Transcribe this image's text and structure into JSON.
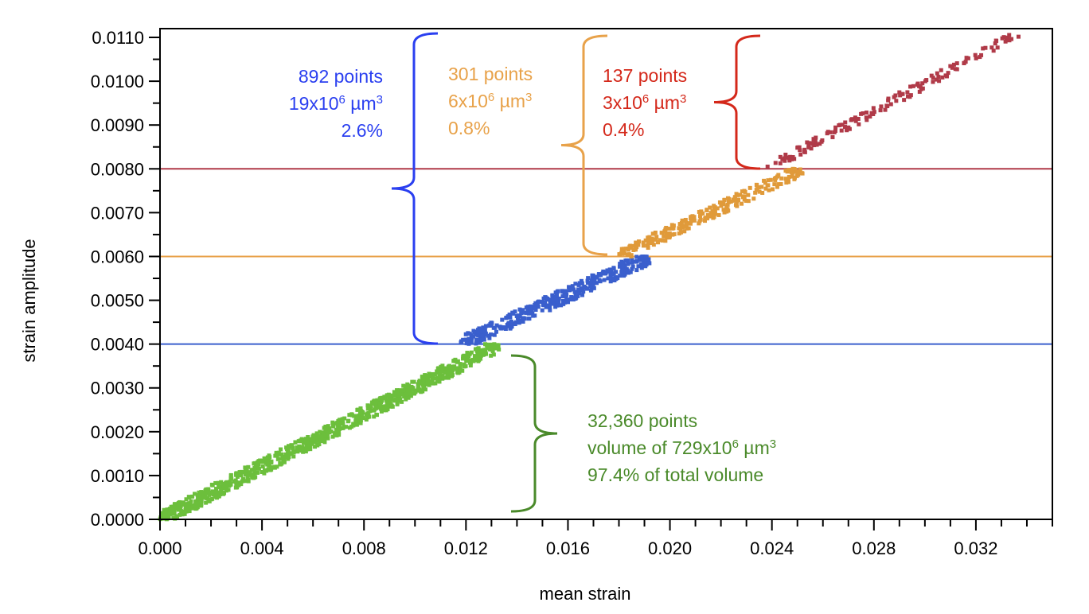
{
  "chart_data": {
    "type": "scatter",
    "title": "",
    "xlabel": "mean strain",
    "ylabel": "strain amplitude",
    "xlim": [
      0.0,
      0.035
    ],
    "ylim": [
      0.0,
      0.0112
    ],
    "x_ticks": [
      "0.000",
      "0.004",
      "0.008",
      "0.012",
      "0.016",
      "0.020",
      "0.024",
      "0.028",
      "0.032"
    ],
    "y_ticks": [
      "0.0000",
      "0.0010",
      "0.0020",
      "0.0030",
      "0.0040",
      "0.0050",
      "0.0060",
      "0.0070",
      "0.0080",
      "0.0090",
      "0.0100",
      "0.0110"
    ],
    "grid": false,
    "thresholds": [
      {
        "y": 0.004,
        "color": "#3a5fcd"
      },
      {
        "y": 0.006,
        "color": "#e8a24a"
      },
      {
        "y": 0.008,
        "color": "#b03a48"
      }
    ],
    "series": [
      {
        "color": "#6cbf3c",
        "y_range": [
          0.0,
          0.004
        ],
        "x_range": [
          0.0,
          0.0133
        ],
        "band": 0.00018
      },
      {
        "color": "#3a5fcd",
        "y_range": [
          0.004,
          0.006
        ],
        "x_range": [
          0.0118,
          0.0192
        ],
        "band": 0.00018
      },
      {
        "color": "#e09a3a",
        "y_range": [
          0.006,
          0.008
        ],
        "x_range": [
          0.018,
          0.0252
        ],
        "band": 0.00015
      },
      {
        "color": "#b03a48",
        "y_range": [
          0.008,
          0.0111
        ],
        "x_range": [
          0.0238,
          0.0337
        ],
        "band": 0.00012
      }
    ],
    "annotations": [
      {
        "color": "#2a3ff0",
        "lines": [
          "892 points",
          "19x10^6 µm^3",
          "2.6%"
        ],
        "align": "right"
      },
      {
        "color": "#e8a24a",
        "lines": [
          "301 points",
          "6x10^6 µm^3",
          "0.8%"
        ],
        "align": "left"
      },
      {
        "color": "#d4281a",
        "lines": [
          "137 points",
          "3x10^6 µm^3",
          "0.4%"
        ],
        "align": "left"
      },
      {
        "color": "#4a8a2a",
        "lines": [
          "32,360 points",
          "volume of 729x10^6 µm^3",
          "97.4% of total volume"
        ],
        "align": "left"
      }
    ]
  }
}
